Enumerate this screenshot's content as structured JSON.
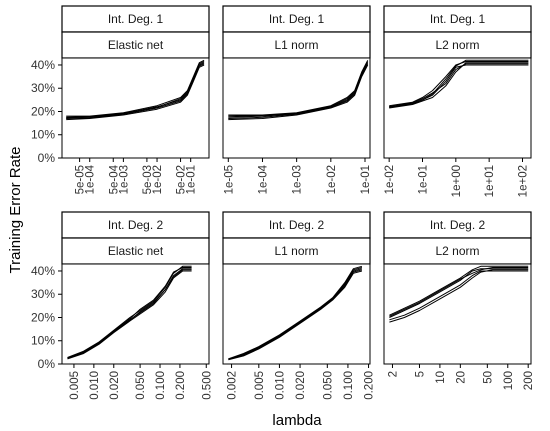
{
  "chart_data": {
    "type": "line",
    "xlabel": "lambda",
    "ylabel": "Training Error Rate",
    "facets": {
      "rows": [
        "Int. Deg. 1",
        "Int. Deg. 2"
      ],
      "cols": [
        "Elastic net",
        "L1 norm",
        "L2 norm"
      ]
    },
    "y_axis": {
      "ylim": [
        0,
        0.43
      ],
      "ticks": [
        0,
        0.1,
        0.2,
        0.3,
        0.4
      ],
      "tick_labels": [
        "0%",
        "10%",
        "20%",
        "30%",
        "40%"
      ]
    },
    "panels": [
      {
        "row": "Int. Deg. 1",
        "col": "Elastic net",
        "x_scale": "log",
        "xlim": [
          1.5e-05,
          0.35
        ],
        "x_ticks": [
          5e-05,
          0.0001,
          0.0005,
          0.001,
          0.005,
          0.01,
          0.05,
          0.1
        ],
        "x_tick_labels": [
          "5e-05",
          "1e-04",
          "5e-04",
          "1e-03",
          "5e-03",
          "1e-02",
          "5e-02",
          "1e-01"
        ],
        "series": [
          {
            "x": [
              2e-05,
              0.0001,
              0.001,
              0.01,
              0.05,
              0.08,
              0.12,
              0.18,
              0.25
            ],
            "y": [
              0.172,
              0.175,
              0.19,
              0.22,
              0.25,
              0.28,
              0.34,
              0.4,
              0.41
            ]
          },
          {
            "x": [
              2e-05,
              0.0001,
              0.001,
              0.01,
              0.05,
              0.08,
              0.12,
              0.18,
              0.25
            ],
            "y": [
              0.165,
              0.17,
              0.185,
              0.21,
              0.24,
              0.27,
              0.33,
              0.39,
              0.4
            ]
          },
          {
            "x": [
              2e-05,
              0.0001,
              0.001,
              0.01,
              0.05,
              0.08,
              0.12,
              0.18,
              0.25
            ],
            "y": [
              0.18,
              0.18,
              0.195,
              0.225,
              0.26,
              0.29,
              0.35,
              0.41,
              0.42
            ]
          },
          {
            "x": [
              2e-05,
              0.0001,
              0.001,
              0.01,
              0.05,
              0.08,
              0.12,
              0.18,
              0.25
            ],
            "y": [
              0.17,
              0.172,
              0.188,
              0.215,
              0.245,
              0.275,
              0.335,
              0.395,
              0.405
            ]
          },
          {
            "x": [
              2e-05,
              0.0001,
              0.001,
              0.01,
              0.05,
              0.08,
              0.12,
              0.18,
              0.25
            ],
            "y": [
              0.175,
              0.178,
              0.192,
              0.218,
              0.255,
              0.285,
              0.345,
              0.405,
              0.415
            ]
          }
        ]
      },
      {
        "row": "Int. Deg. 1",
        "col": "L1 norm",
        "x_scale": "log",
        "xlim": [
          7e-06,
          0.14
        ],
        "x_ticks": [
          1e-05,
          0.0001,
          0.001,
          0.01,
          0.1
        ],
        "x_tick_labels": [
          "1e-05",
          "1e-04",
          "1e-03",
          "1e-02",
          "1e-01"
        ],
        "series": [
          {
            "x": [
              1e-05,
              0.0001,
              0.001,
              0.01,
              0.03,
              0.05,
              0.08,
              0.12
            ],
            "y": [
              0.175,
              0.18,
              0.19,
              0.22,
              0.25,
              0.28,
              0.36,
              0.41
            ]
          },
          {
            "x": [
              1e-05,
              0.0001,
              0.001,
              0.01,
              0.03,
              0.05,
              0.08,
              0.12
            ],
            "y": [
              0.165,
              0.17,
              0.185,
              0.215,
              0.24,
              0.27,
              0.35,
              0.4
            ]
          },
          {
            "x": [
              1e-05,
              0.0001,
              0.001,
              0.01,
              0.03,
              0.05,
              0.08,
              0.12
            ],
            "y": [
              0.185,
              0.185,
              0.195,
              0.225,
              0.26,
              0.29,
              0.37,
              0.42
            ]
          },
          {
            "x": [
              1e-05,
              0.0001,
              0.001,
              0.01,
              0.03,
              0.05,
              0.08,
              0.12
            ],
            "y": [
              0.17,
              0.175,
              0.188,
              0.218,
              0.245,
              0.275,
              0.355,
              0.405
            ]
          },
          {
            "x": [
              1e-05,
              0.0001,
              0.001,
              0.01,
              0.03,
              0.05,
              0.08,
              0.12
            ],
            "y": [
              0.18,
              0.182,
              0.192,
              0.222,
              0.255,
              0.285,
              0.365,
              0.415
            ]
          }
        ]
      },
      {
        "row": "Int. Deg. 1",
        "col": "L2 norm",
        "x_scale": "log",
        "xlim": [
          0.007,
          180
        ],
        "x_ticks": [
          0.01,
          0.1,
          1,
          10,
          100
        ],
        "x_tick_labels": [
          "1e-02",
          "1e-01",
          "1e+00",
          "1e+01",
          "1e+02"
        ],
        "series": [
          {
            "x": [
              0.01,
              0.05,
              0.1,
              0.2,
              0.5,
              1,
              2,
              5,
              20,
              100,
              150
            ],
            "y": [
              0.22,
              0.235,
              0.25,
              0.27,
              0.33,
              0.39,
              0.4,
              0.4,
              0.4,
              0.4,
              0.4
            ]
          },
          {
            "x": [
              0.01,
              0.05,
              0.1,
              0.2,
              0.5,
              1,
              2,
              5,
              20,
              100,
              150
            ],
            "y": [
              0.215,
              0.23,
              0.245,
              0.26,
              0.31,
              0.37,
              0.41,
              0.41,
              0.41,
              0.41,
              0.41
            ]
          },
          {
            "x": [
              0.01,
              0.05,
              0.1,
              0.2,
              0.5,
              1,
              2,
              5,
              20,
              100,
              150
            ],
            "y": [
              0.225,
              0.24,
              0.26,
              0.29,
              0.35,
              0.4,
              0.415,
              0.415,
              0.415,
              0.415,
              0.415
            ]
          },
          {
            "x": [
              0.01,
              0.05,
              0.1,
              0.2,
              0.5,
              1,
              2,
              5,
              20,
              100,
              150
            ],
            "y": [
              0.218,
              0.232,
              0.25,
              0.275,
              0.34,
              0.395,
              0.42,
              0.42,
              0.42,
              0.42,
              0.42
            ]
          },
          {
            "x": [
              0.01,
              0.05,
              0.1,
              0.2,
              0.5,
              1,
              2,
              5,
              20,
              100,
              150
            ],
            "y": [
              0.22,
              0.238,
              0.255,
              0.28,
              0.32,
              0.38,
              0.405,
              0.405,
              0.405,
              0.405,
              0.405
            ]
          }
        ]
      },
      {
        "row": "Int. Deg. 2",
        "col": "Elastic net",
        "x_scale": "log",
        "xlim": [
          0.0033,
          0.55
        ],
        "x_ticks": [
          0.005,
          0.01,
          0.02,
          0.05,
          0.1,
          0.2,
          0.5
        ],
        "x_tick_labels": [
          "0.005",
          "0.010",
          "0.020",
          "0.050",
          "0.100",
          "0.200",
          "0.500"
        ],
        "series": [
          {
            "x": [
              0.004,
              0.007,
              0.012,
              0.02,
              0.035,
              0.05,
              0.08,
              0.12,
              0.16,
              0.22,
              0.3
            ],
            "y": [
              0.025,
              0.05,
              0.09,
              0.14,
              0.19,
              0.22,
              0.26,
              0.32,
              0.38,
              0.41,
              0.41
            ]
          },
          {
            "x": [
              0.004,
              0.007,
              0.012,
              0.02,
              0.035,
              0.05,
              0.08,
              0.12,
              0.16,
              0.22,
              0.3
            ],
            "y": [
              0.022,
              0.045,
              0.085,
              0.135,
              0.185,
              0.215,
              0.255,
              0.31,
              0.37,
              0.4,
              0.4
            ]
          },
          {
            "x": [
              0.004,
              0.007,
              0.012,
              0.02,
              0.035,
              0.05,
              0.08,
              0.12,
              0.16,
              0.22,
              0.3
            ],
            "y": [
              0.028,
              0.055,
              0.095,
              0.145,
              0.2,
              0.23,
              0.27,
              0.33,
              0.39,
              0.42,
              0.42
            ]
          },
          {
            "x": [
              0.004,
              0.007,
              0.012,
              0.02,
              0.035,
              0.05,
              0.08,
              0.12,
              0.16,
              0.22,
              0.3
            ],
            "y": [
              0.024,
              0.048,
              0.088,
              0.138,
              0.188,
              0.225,
              0.265,
              0.32,
              0.375,
              0.405,
              0.405
            ]
          },
          {
            "x": [
              0.004,
              0.007,
              0.012,
              0.02,
              0.035,
              0.05,
              0.08,
              0.12,
              0.16,
              0.22,
              0.3
            ],
            "y": [
              0.026,
              0.052,
              0.092,
              0.142,
              0.195,
              0.235,
              0.275,
              0.335,
              0.395,
              0.415,
              0.415
            ]
          }
        ]
      },
      {
        "row": "Int. Deg. 2",
        "col": "L1 norm",
        "x_scale": "log",
        "xlim": [
          0.0015,
          0.21
        ],
        "x_ticks": [
          0.002,
          0.005,
          0.01,
          0.02,
          0.05,
          0.1,
          0.2
        ],
        "x_tick_labels": [
          "0.002",
          "0.005",
          "0.010",
          "0.020",
          "0.050",
          "0.100",
          "0.200"
        ],
        "series": [
          {
            "x": [
              0.0018,
              0.003,
              0.005,
              0.01,
              0.02,
              0.04,
              0.06,
              0.09,
              0.12,
              0.16
            ],
            "y": [
              0.02,
              0.04,
              0.07,
              0.12,
              0.18,
              0.24,
              0.28,
              0.34,
              0.4,
              0.41
            ]
          },
          {
            "x": [
              0.0018,
              0.003,
              0.005,
              0.01,
              0.02,
              0.04,
              0.06,
              0.09,
              0.12,
              0.16
            ],
            "y": [
              0.018,
              0.035,
              0.065,
              0.115,
              0.175,
              0.235,
              0.275,
              0.33,
              0.39,
              0.4
            ]
          },
          {
            "x": [
              0.0018,
              0.003,
              0.005,
              0.01,
              0.02,
              0.04,
              0.06,
              0.09,
              0.12,
              0.16
            ],
            "y": [
              0.022,
              0.045,
              0.075,
              0.125,
              0.185,
              0.245,
              0.285,
              0.35,
              0.41,
              0.42
            ]
          },
          {
            "x": [
              0.0018,
              0.003,
              0.005,
              0.01,
              0.02,
              0.04,
              0.06,
              0.09,
              0.12,
              0.16
            ],
            "y": [
              0.02,
              0.038,
              0.068,
              0.118,
              0.178,
              0.238,
              0.278,
              0.335,
              0.395,
              0.405
            ]
          },
          {
            "x": [
              0.0018,
              0.003,
              0.005,
              0.01,
              0.02,
              0.04,
              0.06,
              0.09,
              0.12,
              0.16
            ],
            "y": [
              0.021,
              0.042,
              0.072,
              0.122,
              0.182,
              0.242,
              0.282,
              0.345,
              0.405,
              0.415
            ]
          }
        ]
      },
      {
        "row": "Int. Deg. 2",
        "col": "L2 norm",
        "x_scale": "log",
        "xlim": [
          1.5,
          220
        ],
        "x_ticks": [
          2,
          5,
          10,
          20,
          50,
          100,
          200
        ],
        "x_tick_labels": [
          "2",
          "5",
          "10",
          "20",
          "50",
          "100",
          "200"
        ],
        "series": [
          {
            "x": [
              1.8,
              3,
              5,
              10,
              20,
              30,
              40,
              60,
              100,
              200
            ],
            "y": [
              0.19,
              0.21,
              0.24,
              0.29,
              0.34,
              0.38,
              0.4,
              0.4,
              0.4,
              0.4
            ]
          },
          {
            "x": [
              1.8,
              3,
              5,
              10,
              20,
              30,
              40,
              60,
              100,
              200
            ],
            "y": [
              0.2,
              0.23,
              0.26,
              0.31,
              0.36,
              0.4,
              0.41,
              0.41,
              0.41,
              0.41
            ]
          },
          {
            "x": [
              1.8,
              3,
              5,
              10,
              20,
              30,
              40,
              60,
              100,
              200
            ],
            "y": [
              0.21,
              0.24,
              0.27,
              0.32,
              0.37,
              0.405,
              0.42,
              0.42,
              0.42,
              0.42
            ]
          },
          {
            "x": [
              1.8,
              3,
              5,
              10,
              20,
              30,
              40,
              60,
              100,
              200
            ],
            "y": [
              0.18,
              0.2,
              0.23,
              0.28,
              0.33,
              0.37,
              0.395,
              0.405,
              0.405,
              0.405
            ]
          },
          {
            "x": [
              1.8,
              3,
              5,
              10,
              20,
              30,
              40,
              60,
              100,
              200
            ],
            "y": [
              0.205,
              0.235,
              0.265,
              0.315,
              0.365,
              0.39,
              0.405,
              0.415,
              0.415,
              0.415
            ]
          }
        ]
      }
    ]
  }
}
